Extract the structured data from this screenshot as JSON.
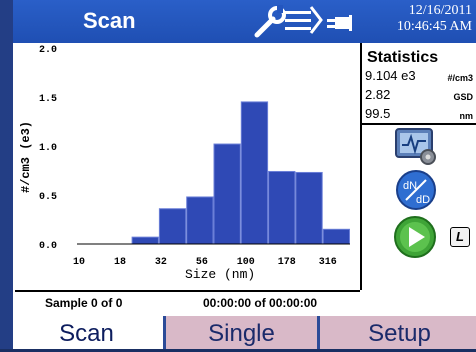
{
  "header": {
    "title": "Scan",
    "date": "12/16/2011",
    "time": "10:46:45 AM",
    "icons": [
      "wrench-icon",
      "list-icon",
      "plug-icon"
    ]
  },
  "stats": {
    "heading": "Statistics",
    "rows": [
      {
        "value": "9.104 e3",
        "unit": "#/cm3"
      },
      {
        "value": "2.82",
        "unit": "GSD"
      },
      {
        "value": "99.5",
        "unit": "nm"
      }
    ]
  },
  "side_buttons": {
    "settings_icon": "monitor-gear-icon",
    "dndd_label_top": "dN",
    "dndd_label_bottom": "dD",
    "play_icon": "play-icon",
    "small_button_label": "L"
  },
  "status_bar": {
    "sample": "Sample 0 of 0",
    "timer": "00:00:00 of 00:00:00"
  },
  "tabs": [
    {
      "label": "Scan",
      "active": true
    },
    {
      "label": "Single",
      "active": false
    },
    {
      "label": "Setup",
      "active": false
    }
  ],
  "chart_data": {
    "type": "bar",
    "ylabel": "#/cm3 (e3)",
    "xlabel": "Size (nm)",
    "ylim": [
      0,
      2.0
    ],
    "yticks": [
      "0.0",
      "0.5",
      "1.0",
      "1.5",
      "2.0"
    ],
    "xticks": [
      "10",
      "18",
      "32",
      "56",
      "100",
      "178",
      "316"
    ],
    "values": [
      0,
      0,
      0.07,
      0.36,
      0.48,
      1.02,
      1.45,
      0.74,
      0.73,
      0.15
    ]
  }
}
